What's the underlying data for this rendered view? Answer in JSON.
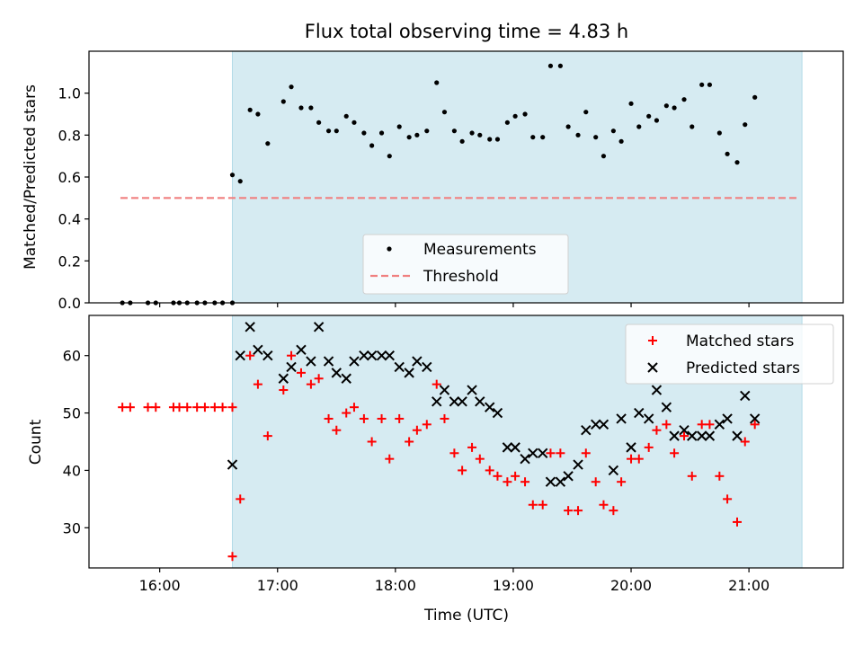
{
  "chart_data": [
    {
      "type": "scatter",
      "title": "Flux total observing time = 4.83 h",
      "xlabel": "",
      "ylabel": "Matched/Predicted stars",
      "xlim": [
        "15:24",
        "21:48"
      ],
      "ylim": [
        0,
        1.2
      ],
      "yticks": [
        0.0,
        0.2,
        0.4,
        0.6,
        0.8,
        1.0
      ],
      "ytick_labels": [
        "0.0",
        "0.2",
        "0.4",
        "0.6",
        "0.8",
        "1.0"
      ],
      "xticks": [
        "16:00",
        "17:00",
        "18:00",
        "19:00",
        "20:00",
        "21:00"
      ],
      "xtick_labels_shown": false,
      "shaded_span": {
        "from": "16:37",
        "to": "21:27",
        "color": "#add8e6"
      },
      "threshold": {
        "value": 0.5,
        "from": "15:40",
        "to": "21:25",
        "color": "#f08080"
      },
      "legend": {
        "placement": "lower-center",
        "entries": [
          "Measurements",
          "Threshold"
        ]
      },
      "series": [
        {
          "name": "Measurements",
          "points": [
            [
              "15:41",
              0.0
            ],
            [
              "15:45",
              0.0
            ],
            [
              "15:54",
              0.0
            ],
            [
              "15:58",
              0.0
            ],
            [
              "16:07",
              0.0
            ],
            [
              "16:10",
              0.0
            ],
            [
              "16:14",
              0.0
            ],
            [
              "16:19",
              0.0
            ],
            [
              "16:23",
              0.0
            ],
            [
              "16:28",
              0.0
            ],
            [
              "16:32",
              0.0
            ],
            [
              "16:37",
              0.0
            ],
            [
              "16:37",
              0.61
            ],
            [
              "16:41",
              0.58
            ],
            [
              "16:46",
              0.92
            ],
            [
              "16:50",
              0.9
            ],
            [
              "16:55",
              0.76
            ],
            [
              "17:03",
              0.96
            ],
            [
              "17:07",
              1.03
            ],
            [
              "17:12",
              0.93
            ],
            [
              "17:17",
              0.93
            ],
            [
              "17:21",
              0.86
            ],
            [
              "17:26",
              0.82
            ],
            [
              "17:30",
              0.82
            ],
            [
              "17:35",
              0.89
            ],
            [
              "17:39",
              0.86
            ],
            [
              "17:44",
              0.81
            ],
            [
              "17:48",
              0.75
            ],
            [
              "17:53",
              0.81
            ],
            [
              "17:57",
              0.7
            ],
            [
              "18:02",
              0.84
            ],
            [
              "18:07",
              0.79
            ],
            [
              "18:11",
              0.8
            ],
            [
              "18:16",
              0.82
            ],
            [
              "18:21",
              1.05
            ],
            [
              "18:25",
              0.91
            ],
            [
              "18:30",
              0.82
            ],
            [
              "18:34",
              0.77
            ],
            [
              "18:39",
              0.81
            ],
            [
              "18:43",
              0.8
            ],
            [
              "18:48",
              0.78
            ],
            [
              "18:52",
              0.78
            ],
            [
              "18:57",
              0.86
            ],
            [
              "19:01",
              0.89
            ],
            [
              "19:06",
              0.9
            ],
            [
              "19:10",
              0.79
            ],
            [
              "19:15",
              0.79
            ],
            [
              "19:19",
              1.13
            ],
            [
              "19:24",
              1.13
            ],
            [
              "19:28",
              0.84
            ],
            [
              "19:33",
              0.8
            ],
            [
              "19:37",
              0.91
            ],
            [
              "19:42",
              0.79
            ],
            [
              "19:46",
              0.7
            ],
            [
              "19:51",
              0.82
            ],
            [
              "19:55",
              0.77
            ],
            [
              "20:00",
              0.95
            ],
            [
              "20:04",
              0.84
            ],
            [
              "20:09",
              0.89
            ],
            [
              "20:13",
              0.87
            ],
            [
              "20:18",
              0.94
            ],
            [
              "20:22",
              0.93
            ],
            [
              "20:27",
              0.97
            ],
            [
              "20:31",
              0.84
            ],
            [
              "20:36",
              1.04
            ],
            [
              "20:40",
              1.04
            ],
            [
              "20:45",
              0.81
            ],
            [
              "20:49",
              0.71
            ],
            [
              "20:54",
              0.67
            ],
            [
              "20:58",
              0.85
            ],
            [
              "21:03",
              0.98
            ]
          ]
        }
      ]
    },
    {
      "type": "scatter",
      "title": "",
      "xlabel": "Time (UTC)",
      "ylabel": "Count",
      "xlim": [
        "15:24",
        "21:48"
      ],
      "ylim": [
        23,
        67
      ],
      "yticks": [
        30,
        40,
        50,
        60
      ],
      "ytick_labels": [
        "30",
        "40",
        "50",
        "60"
      ],
      "xticks": [
        "16:00",
        "17:00",
        "18:00",
        "19:00",
        "20:00",
        "21:00"
      ],
      "xtick_labels": [
        "16:00",
        "17:00",
        "18:00",
        "19:00",
        "20:00",
        "21:00"
      ],
      "shaded_span": {
        "from": "16:37",
        "to": "21:27",
        "color": "#add8e6"
      },
      "legend": {
        "placement": "top-right",
        "entries": [
          "Matched stars",
          "Predicted stars"
        ]
      },
      "series": [
        {
          "name": "Matched stars",
          "color": "#ff0000",
          "marker": "plus",
          "points": [
            [
              "15:41",
              51
            ],
            [
              "15:45",
              51
            ],
            [
              "15:54",
              51
            ],
            [
              "15:58",
              51
            ],
            [
              "16:07",
              51
            ],
            [
              "16:10",
              51
            ],
            [
              "16:14",
              51
            ],
            [
              "16:19",
              51
            ],
            [
              "16:23",
              51
            ],
            [
              "16:28",
              51
            ],
            [
              "16:32",
              51
            ],
            [
              "16:37",
              51
            ],
            [
              "16:37",
              25
            ],
            [
              "16:41",
              35
            ],
            [
              "16:46",
              60
            ],
            [
              "16:50",
              55
            ],
            [
              "16:55",
              46
            ],
            [
              "17:03",
              54
            ],
            [
              "17:07",
              60
            ],
            [
              "17:12",
              57
            ],
            [
              "17:17",
              55
            ],
            [
              "17:21",
              56
            ],
            [
              "17:26",
              49
            ],
            [
              "17:30",
              47
            ],
            [
              "17:35",
              50
            ],
            [
              "17:39",
              51
            ],
            [
              "17:44",
              49
            ],
            [
              "17:48",
              45
            ],
            [
              "17:53",
              49
            ],
            [
              "17:57",
              42
            ],
            [
              "18:02",
              49
            ],
            [
              "18:07",
              45
            ],
            [
              "18:11",
              47
            ],
            [
              "18:16",
              48
            ],
            [
              "18:21",
              55
            ],
            [
              "18:25",
              49
            ],
            [
              "18:30",
              43
            ],
            [
              "18:34",
              40
            ],
            [
              "18:39",
              44
            ],
            [
              "18:43",
              42
            ],
            [
              "18:48",
              40
            ],
            [
              "18:52",
              39
            ],
            [
              "18:57",
              38
            ],
            [
              "19:01",
              39
            ],
            [
              "19:06",
              38
            ],
            [
              "19:10",
              34
            ],
            [
              "19:15",
              34
            ],
            [
              "19:19",
              43
            ],
            [
              "19:24",
              43
            ],
            [
              "19:28",
              33
            ],
            [
              "19:33",
              33
            ],
            [
              "19:37",
              43
            ],
            [
              "19:42",
              38
            ],
            [
              "19:46",
              34
            ],
            [
              "19:51",
              33
            ],
            [
              "19:55",
              38
            ],
            [
              "20:00",
              42
            ],
            [
              "20:04",
              42
            ],
            [
              "20:09",
              44
            ],
            [
              "20:13",
              47
            ],
            [
              "20:18",
              48
            ],
            [
              "20:22",
              43
            ],
            [
              "20:27",
              46
            ],
            [
              "20:31",
              39
            ],
            [
              "20:36",
              48
            ],
            [
              "20:40",
              48
            ],
            [
              "20:45",
              39
            ],
            [
              "20:49",
              35
            ],
            [
              "20:54",
              31
            ],
            [
              "20:58",
              45
            ],
            [
              "21:03",
              48
            ]
          ]
        },
        {
          "name": "Predicted stars",
          "color": "#000000",
          "marker": "x",
          "points": [
            [
              "16:37",
              41
            ],
            [
              "16:41",
              60
            ],
            [
              "16:46",
              65
            ],
            [
              "16:50",
              61
            ],
            [
              "16:55",
              60
            ],
            [
              "17:03",
              56
            ],
            [
              "17:07",
              58
            ],
            [
              "17:12",
              61
            ],
            [
              "17:17",
              59
            ],
            [
              "17:21",
              65
            ],
            [
              "17:26",
              59
            ],
            [
              "17:30",
              57
            ],
            [
              "17:35",
              56
            ],
            [
              "17:39",
              59
            ],
            [
              "17:44",
              60
            ],
            [
              "17:48",
              60
            ],
            [
              "17:53",
              60
            ],
            [
              "17:57",
              60
            ],
            [
              "18:02",
              58
            ],
            [
              "18:07",
              57
            ],
            [
              "18:11",
              59
            ],
            [
              "18:16",
              58
            ],
            [
              "18:21",
              52
            ],
            [
              "18:25",
              54
            ],
            [
              "18:30",
              52
            ],
            [
              "18:34",
              52
            ],
            [
              "18:39",
              54
            ],
            [
              "18:43",
              52
            ],
            [
              "18:48",
              51
            ],
            [
              "18:52",
              50
            ],
            [
              "18:57",
              44
            ],
            [
              "19:01",
              44
            ],
            [
              "19:06",
              42
            ],
            [
              "19:10",
              43
            ],
            [
              "19:15",
              43
            ],
            [
              "19:19",
              38
            ],
            [
              "19:24",
              38
            ],
            [
              "19:28",
              39
            ],
            [
              "19:33",
              41
            ],
            [
              "19:37",
              47
            ],
            [
              "19:42",
              48
            ],
            [
              "19:46",
              48
            ],
            [
              "19:51",
              40
            ],
            [
              "19:55",
              49
            ],
            [
              "20:00",
              44
            ],
            [
              "20:04",
              50
            ],
            [
              "20:09",
              49
            ],
            [
              "20:13",
              54
            ],
            [
              "20:18",
              51
            ],
            [
              "20:22",
              46
            ],
            [
              "20:27",
              47
            ],
            [
              "20:31",
              46
            ],
            [
              "20:36",
              46
            ],
            [
              "20:40",
              46
            ],
            [
              "20:45",
              48
            ],
            [
              "20:49",
              49
            ],
            [
              "20:54",
              46
            ],
            [
              "20:58",
              53
            ],
            [
              "21:03",
              49
            ]
          ]
        }
      ]
    }
  ]
}
